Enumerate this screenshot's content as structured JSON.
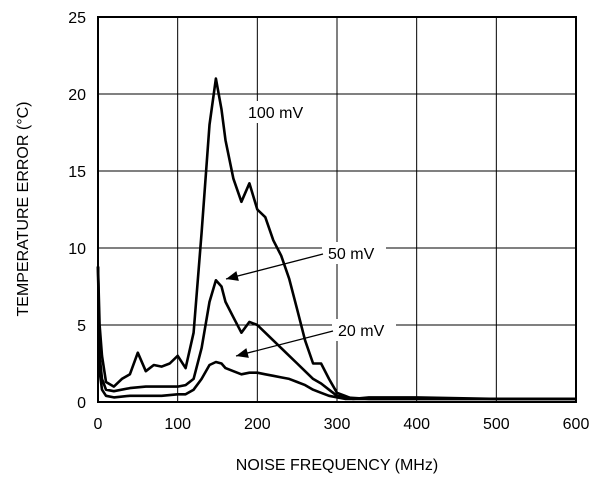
{
  "chart_data": {
    "type": "line",
    "title": "",
    "xlabel": "NOISE FREQUENCY (MHz)",
    "ylabel": "TEMPERATURE ERROR (°C)",
    "xlim": [
      0,
      600
    ],
    "ylim": [
      0,
      25
    ],
    "x_ticks": [
      "0",
      "100",
      "200",
      "300",
      "400",
      "500",
      "600"
    ],
    "y_ticks": [
      "0",
      "5",
      "10",
      "15",
      "20",
      "25"
    ],
    "grid": true,
    "legend": "none",
    "annotations": [
      {
        "text": "100 mV",
        "series": 0
      },
      {
        "text": "50 mV",
        "series": 1
      },
      {
        "text": "20 mV",
        "series": 2
      }
    ],
    "series": [
      {
        "name": "100 mV",
        "x": [
          0,
          2,
          5,
          10,
          20,
          30,
          40,
          50,
          60,
          70,
          80,
          90,
          100,
          110,
          120,
          130,
          140,
          148,
          155,
          160,
          170,
          180,
          190,
          200,
          210,
          220,
          230,
          240,
          250,
          260,
          270,
          280,
          290,
          300,
          310,
          320,
          340,
          400,
          500,
          600
        ],
        "y": [
          8.8,
          5,
          3,
          1.3,
          1.0,
          1.5,
          1.8,
          3.2,
          2.0,
          2.4,
          2.3,
          2.5,
          3.0,
          2.2,
          4.5,
          11,
          18,
          21,
          19,
          17,
          14.5,
          13,
          14.2,
          12.5,
          12,
          10.5,
          9.5,
          8,
          6,
          4,
          2.5,
          2.5,
          1.5,
          0.6,
          0.4,
          0.2,
          0.3,
          0.3,
          0.2,
          0.2
        ]
      },
      {
        "name": "50 mV",
        "x": [
          0,
          2,
          5,
          10,
          20,
          40,
          60,
          80,
          100,
          110,
          120,
          130,
          140,
          148,
          155,
          160,
          170,
          180,
          190,
          200,
          210,
          220,
          230,
          240,
          250,
          260,
          270,
          280,
          290,
          300,
          310,
          340,
          400,
          500,
          600
        ],
        "y": [
          8.8,
          3,
          1.5,
          0.8,
          0.7,
          0.9,
          1.0,
          1.0,
          1.0,
          1.1,
          1.5,
          3.5,
          6.5,
          7.9,
          7.5,
          6.5,
          5.5,
          4.5,
          5.2,
          5.0,
          4.5,
          4.0,
          3.5,
          3.0,
          2.5,
          2.0,
          1.5,
          1.2,
          0.8,
          0.4,
          0.3,
          0.2,
          0.2,
          0.2,
          0.2
        ]
      },
      {
        "name": "20 mV",
        "x": [
          0,
          2,
          5,
          10,
          20,
          40,
          60,
          80,
          100,
          110,
          120,
          130,
          140,
          148,
          155,
          160,
          170,
          180,
          190,
          200,
          210,
          220,
          230,
          240,
          250,
          260,
          270,
          280,
          290,
          300,
          310,
          340,
          400,
          500,
          600
        ],
        "y": [
          8.8,
          2,
          0.8,
          0.4,
          0.3,
          0.4,
          0.4,
          0.4,
          0.5,
          0.5,
          0.8,
          1.5,
          2.4,
          2.6,
          2.5,
          2.2,
          2.0,
          1.8,
          1.9,
          1.9,
          1.8,
          1.7,
          1.6,
          1.5,
          1.3,
          1.1,
          0.8,
          0.6,
          0.4,
          0.3,
          0.2,
          0.2,
          0.2,
          0.2,
          0.2
        ]
      }
    ]
  }
}
